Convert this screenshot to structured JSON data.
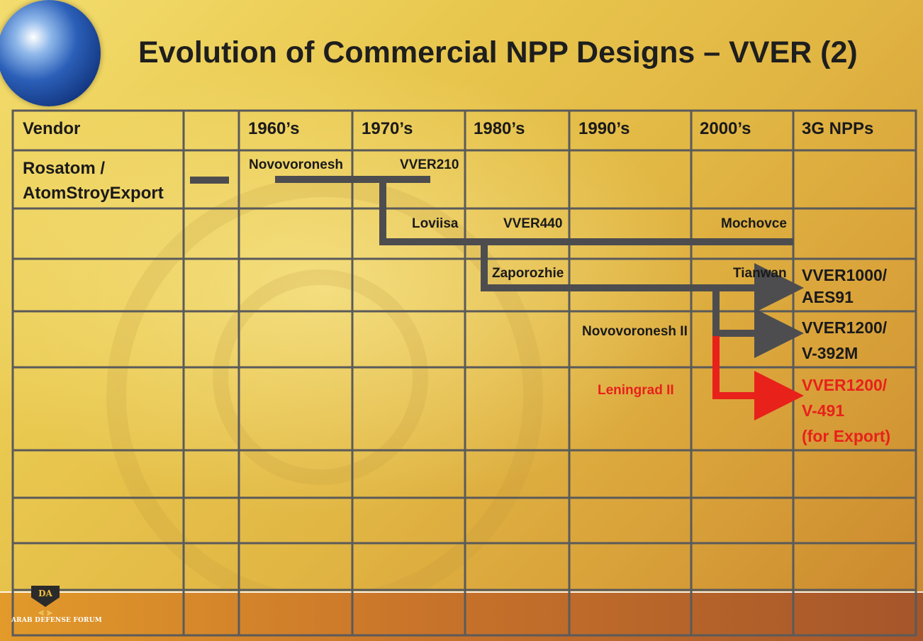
{
  "title": "Evolution of Commercial NPP Designs – VVER (2)",
  "colors": {
    "line": "#4d4d4f",
    "highlight": "#e8211b",
    "grid": "#5a5a5a"
  },
  "headers": {
    "vendor": "Vendor",
    "blank": "",
    "d1960": "1960’s",
    "d1970": "1970’s",
    "d1980": "1980’s",
    "d1990": "1990’s",
    "d2000": "2000’s",
    "g3": "3G NPPs"
  },
  "vendor": {
    "line1": "Rosatom /",
    "line2": "AtomStroyExport"
  },
  "plants": {
    "novovoronesh": "Novovoronesh",
    "vver210": "VVER210",
    "loviisa": "Loviisa",
    "vver440": "VVER440",
    "mochovce": "Mochovce",
    "zaporozhie": "Zaporozhie",
    "tianwan": "Tianwan",
    "novovoronesh2": "Novovoronesh II",
    "leningrad2": "Leningrad II"
  },
  "designs": {
    "aes91": {
      "line1": "VVER1000/",
      "line2": "AES91"
    },
    "v392m": {
      "line1": "VVER1200/",
      "line2": "V-392M"
    },
    "v491": {
      "line1": "VVER1200/",
      "line2": "V-491",
      "line3": "(for Export)"
    }
  },
  "watermark": {
    "logo_letters": "DA",
    "logo_text": "ARAB DEFENSE FORUM"
  }
}
